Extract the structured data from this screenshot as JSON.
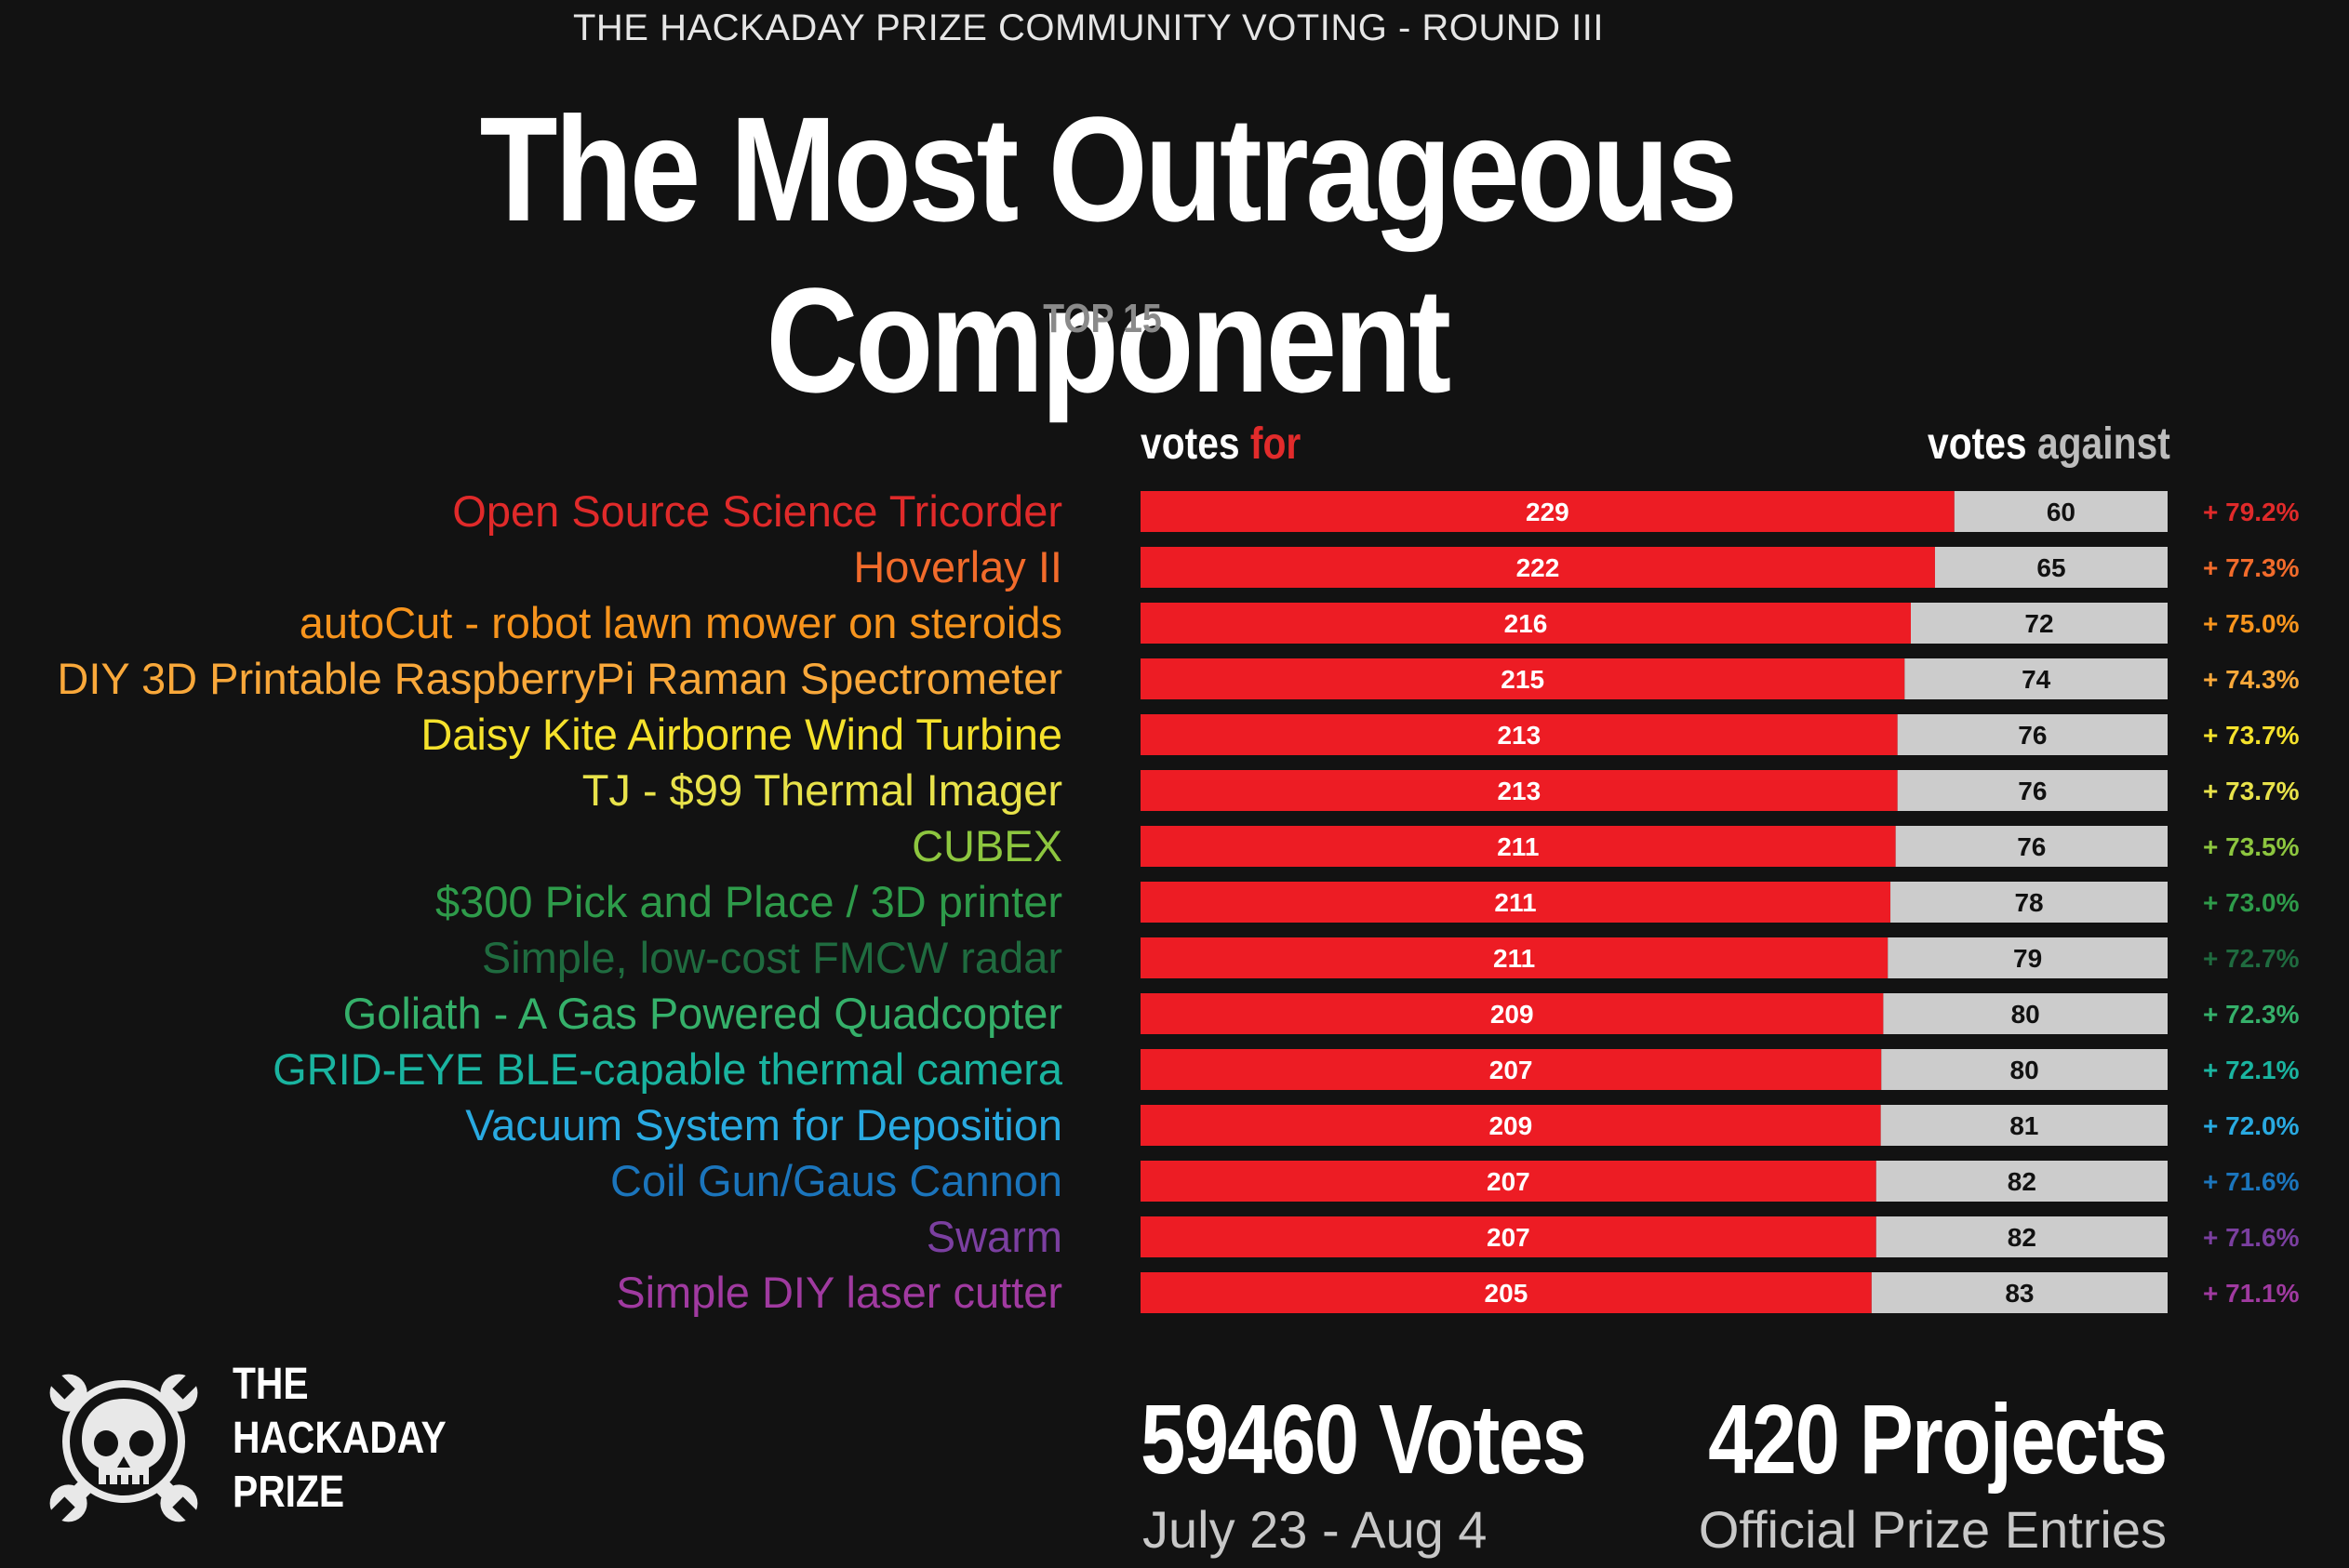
{
  "header": {
    "supertitle": "THE HACKADAY PRIZE COMMUNITY VOTING - ROUND III",
    "title": "The Most Outrageous Component",
    "subtitle": "TOP 15"
  },
  "legend": {
    "votes_word": "votes",
    "for_word": "for",
    "against_word": "against"
  },
  "chart_data": {
    "type": "bar",
    "orientation": "horizontal-stacked",
    "title": "The Most Outrageous Component",
    "subtitle": "TOP 15",
    "xlabel": "",
    "ylabel": "",
    "series": [
      {
        "name": "votes for",
        "color": "#ed1c24",
        "values": [
          229,
          222,
          216,
          215,
          213,
          213,
          211,
          211,
          211,
          209,
          207,
          209,
          207,
          207,
          205
        ]
      },
      {
        "name": "votes against",
        "color": "#cccccc",
        "values": [
          60,
          65,
          72,
          74,
          76,
          76,
          76,
          78,
          79,
          80,
          80,
          81,
          82,
          82,
          83
        ]
      }
    ],
    "categories": [
      "Open Source Science Tricorder",
      "Hoverlay II",
      "autoCut - robot lawn mower on steroids",
      "DIY 3D Printable RaspberryPi Raman Spectrometer",
      "Daisy Kite Airborne Wind Turbine",
      "TJ - $99 Thermal Imager",
      "CUBEX",
      "$300 Pick and Place / 3D printer",
      "Simple, low-cost FMCW radar",
      "Goliath - A Gas Powered Quadcopter",
      "GRID-EYE BLE-capable thermal camera",
      "Vacuum System for Deposition",
      "Coil Gun/Gaus Cannon",
      "Swarm",
      "Simple DIY laser cutter"
    ],
    "percentages": [
      "+ 79.2%",
      "+ 77.3%",
      "+ 75.0%",
      "+ 74.3%",
      "+ 73.7%",
      "+ 73.7%",
      "+ 73.5%",
      "+ 73.0%",
      "+ 72.7%",
      "+ 72.3%",
      "+ 72.1%",
      "+ 72.0%",
      "+ 71.6%",
      "+ 71.6%",
      "+ 71.1%"
    ],
    "label_colors": [
      "#e02a2a",
      "#f26b2b",
      "#f7941d",
      "#f9a83a",
      "#f5e22c",
      "#e8e24a",
      "#8dc63f",
      "#2e9b4a",
      "#1f6b3f",
      "#35b06a",
      "#1ab4a0",
      "#29aae1",
      "#1b75bc",
      "#7b3fa0",
      "#a03aa0"
    ]
  },
  "footer": {
    "brand_lines": [
      "THE",
      "HACKADAY",
      "PRIZE"
    ],
    "votes_total": "59460 Votes",
    "votes_dates": "July 23 - Aug 4",
    "projects_total": "420 Projects",
    "projects_sub": "Official Prize Entries"
  }
}
